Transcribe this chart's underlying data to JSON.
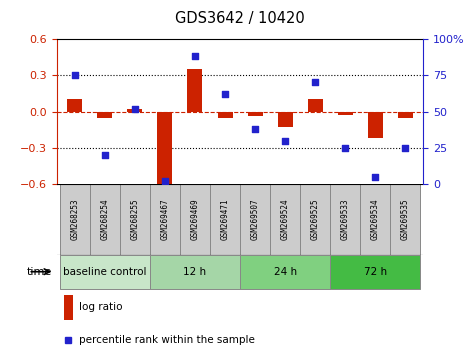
{
  "title": "GDS3642 / 10420",
  "samples": [
    "GSM268253",
    "GSM268254",
    "GSM268255",
    "GSM269467",
    "GSM269469",
    "GSM269471",
    "GSM269507",
    "GSM269524",
    "GSM269525",
    "GSM269533",
    "GSM269534",
    "GSM269535"
  ],
  "log_ratio": [
    0.1,
    -0.05,
    0.02,
    -0.62,
    0.35,
    -0.05,
    -0.04,
    -0.13,
    0.1,
    -0.03,
    -0.22,
    -0.05
  ],
  "percentile_rank": [
    75,
    20,
    52,
    2,
    88,
    62,
    38,
    30,
    70,
    25,
    5,
    25
  ],
  "ylim_left": [
    -0.6,
    0.6
  ],
  "ylim_right": [
    0,
    100
  ],
  "yticks_left": [
    -0.6,
    -0.3,
    0.0,
    0.3,
    0.6
  ],
  "yticks_right": [
    0,
    25,
    50,
    75,
    100
  ],
  "hlines": [
    0.3,
    -0.3
  ],
  "bar_color": "#cc2200",
  "dot_color": "#2222cc",
  "zero_line_color": "#cc2200",
  "background_color": "#ffffff",
  "groups": [
    {
      "label": "baseline control",
      "start": 0,
      "end": 3,
      "color": "#c8e6c9"
    },
    {
      "label": "12 h",
      "start": 3,
      "end": 6,
      "color": "#a5d6a7"
    },
    {
      "label": "24 h",
      "start": 6,
      "end": 9,
      "color": "#80d080"
    },
    {
      "label": "72 h",
      "start": 9,
      "end": 12,
      "color": "#44bb44"
    }
  ],
  "time_label": "time",
  "legend_log_ratio": "log ratio",
  "legend_percentile": "percentile rank within the sample",
  "bar_width": 0.5,
  "sample_box_color": "#cccccc",
  "sample_box_edge": "#888888"
}
